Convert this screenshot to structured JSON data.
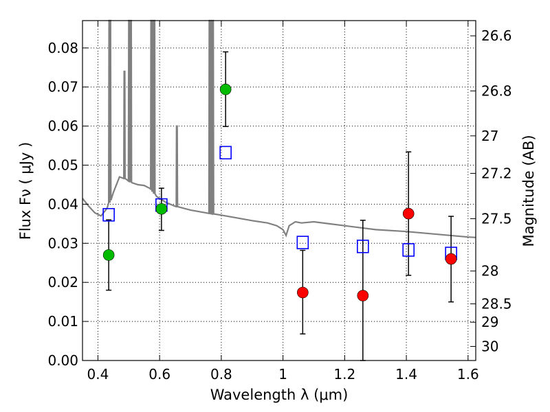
{
  "chart_data": {
    "type": "scatter",
    "xlabel": "Wavelength  λ (μm)",
    "ylabel": "Flux  Fν  ( μJy )",
    "y2label": "Magnitude (AB)",
    "xlim": [
      0.35,
      1.625
    ],
    "ylim": [
      0.0,
      0.087
    ],
    "grid": true,
    "x_ticks": [
      0.4,
      0.6,
      0.8,
      1.0,
      1.2,
      1.4,
      1.6
    ],
    "x_tick_labels": [
      "0.4",
      "0.6",
      "0.8",
      "1",
      "1.2",
      "1.4",
      "1.6"
    ],
    "y_ticks": [
      0.0,
      0.01,
      0.02,
      0.03,
      0.04,
      0.05,
      0.06,
      0.07,
      0.08
    ],
    "y_tick_labels": [
      "0.00",
      "0.01",
      "0.02",
      "0.03",
      "0.04",
      "0.05",
      "0.06",
      "0.07",
      "0.08"
    ],
    "y2_ticks": [
      {
        "label": "26.6",
        "flux": 0.0831
      },
      {
        "label": "26.8",
        "flux": 0.069
      },
      {
        "label": "27",
        "flux": 0.0575
      },
      {
        "label": "27.2",
        "flux": 0.0479
      },
      {
        "label": "27.5",
        "flux": 0.0363
      },
      {
        "label": "28",
        "flux": 0.0229
      },
      {
        "label": "28.5",
        "flux": 0.0145
      },
      {
        "label": "29",
        "flux": 0.0098
      },
      {
        "label": "30",
        "flux": 0.0036
      }
    ],
    "series": [
      {
        "name": "green detections",
        "color": "#00bb00",
        "marker": "circle",
        "points": [
          {
            "x": 0.435,
            "y": 0.027,
            "err_lo": 0.018,
            "err_hi": 0.036
          },
          {
            "x": 0.606,
            "y": 0.0388,
            "err_lo": 0.0333,
            "err_hi": 0.0441
          },
          {
            "x": 0.814,
            "y": 0.0694,
            "err_lo": 0.0599,
            "err_hi": 0.079
          }
        ]
      },
      {
        "name": "red detections",
        "color": "#ff0000",
        "marker": "circle",
        "points": [
          {
            "x": 1.064,
            "y": 0.0174,
            "err_lo": 0.0068,
            "err_hi": 0.0282
          },
          {
            "x": 1.259,
            "y": 0.0166,
            "err_lo": 0.0,
            "err_hi": 0.0359
          },
          {
            "x": 1.407,
            "y": 0.0376,
            "err_lo": 0.0218,
            "err_hi": 0.0534
          },
          {
            "x": 1.545,
            "y": 0.026,
            "err_lo": 0.015,
            "err_hi": 0.0369
          }
        ]
      },
      {
        "name": "model photometry",
        "color": "#0000ff",
        "marker": "open-square",
        "points": [
          {
            "x": 0.435,
            "y": 0.0373
          },
          {
            "x": 0.606,
            "y": 0.0398
          },
          {
            "x": 0.814,
            "y": 0.0532
          },
          {
            "x": 1.064,
            "y": 0.0302
          },
          {
            "x": 1.259,
            "y": 0.0292
          },
          {
            "x": 1.407,
            "y": 0.0283
          },
          {
            "x": 1.545,
            "y": 0.0274
          }
        ]
      },
      {
        "name": "model spectrum",
        "color": "#808080",
        "marker": "line",
        "continuum": [
          [
            0.35,
            0.0415
          ],
          [
            0.37,
            0.0395
          ],
          [
            0.39,
            0.0378
          ],
          [
            0.41,
            0.037
          ],
          [
            0.43,
            0.039
          ],
          [
            0.45,
            0.043
          ],
          [
            0.47,
            0.047
          ],
          [
            0.49,
            0.0465
          ],
          [
            0.51,
            0.0455
          ],
          [
            0.53,
            0.045
          ],
          [
            0.55,
            0.0448
          ],
          [
            0.57,
            0.044
          ],
          [
            0.59,
            0.042
          ],
          [
            0.62,
            0.0405
          ],
          [
            0.65,
            0.0395
          ],
          [
            0.7,
            0.0385
          ],
          [
            0.75,
            0.0378
          ],
          [
            0.8,
            0.0372
          ],
          [
            0.85,
            0.0365
          ],
          [
            0.9,
            0.0358
          ],
          [
            0.95,
            0.0352
          ],
          [
            0.98,
            0.0345
          ],
          [
            1.0,
            0.0335
          ],
          [
            1.01,
            0.032
          ],
          [
            1.02,
            0.0345
          ],
          [
            1.04,
            0.0355
          ],
          [
            1.06,
            0.0352
          ],
          [
            1.1,
            0.0355
          ],
          [
            1.15,
            0.035
          ],
          [
            1.2,
            0.0345
          ],
          [
            1.3,
            0.0335
          ],
          [
            1.4,
            0.033
          ],
          [
            1.5,
            0.0323
          ],
          [
            1.6,
            0.0316
          ],
          [
            1.625,
            0.0315
          ]
        ],
        "emission_lines": [
          {
            "x": 0.437,
            "peak": 0.087
          },
          {
            "x": 0.44,
            "peak": 0.087
          },
          {
            "x": 0.486,
            "peak": 0.074
          },
          {
            "x": 0.501,
            "peak": 0.087
          },
          {
            "x": 0.507,
            "peak": 0.087
          },
          {
            "x": 0.656,
            "peak": 0.06
          },
          {
            "x": 0.573,
            "peak": 0.087
          },
          {
            "x": 0.578,
            "peak": 0.087
          },
          {
            "x": 0.583,
            "peak": 0.087
          },
          {
            "x": 0.762,
            "peak": 0.087
          },
          {
            "x": 0.768,
            "peak": 0.087
          },
          {
            "x": 0.773,
            "peak": 0.087
          }
        ]
      }
    ]
  }
}
